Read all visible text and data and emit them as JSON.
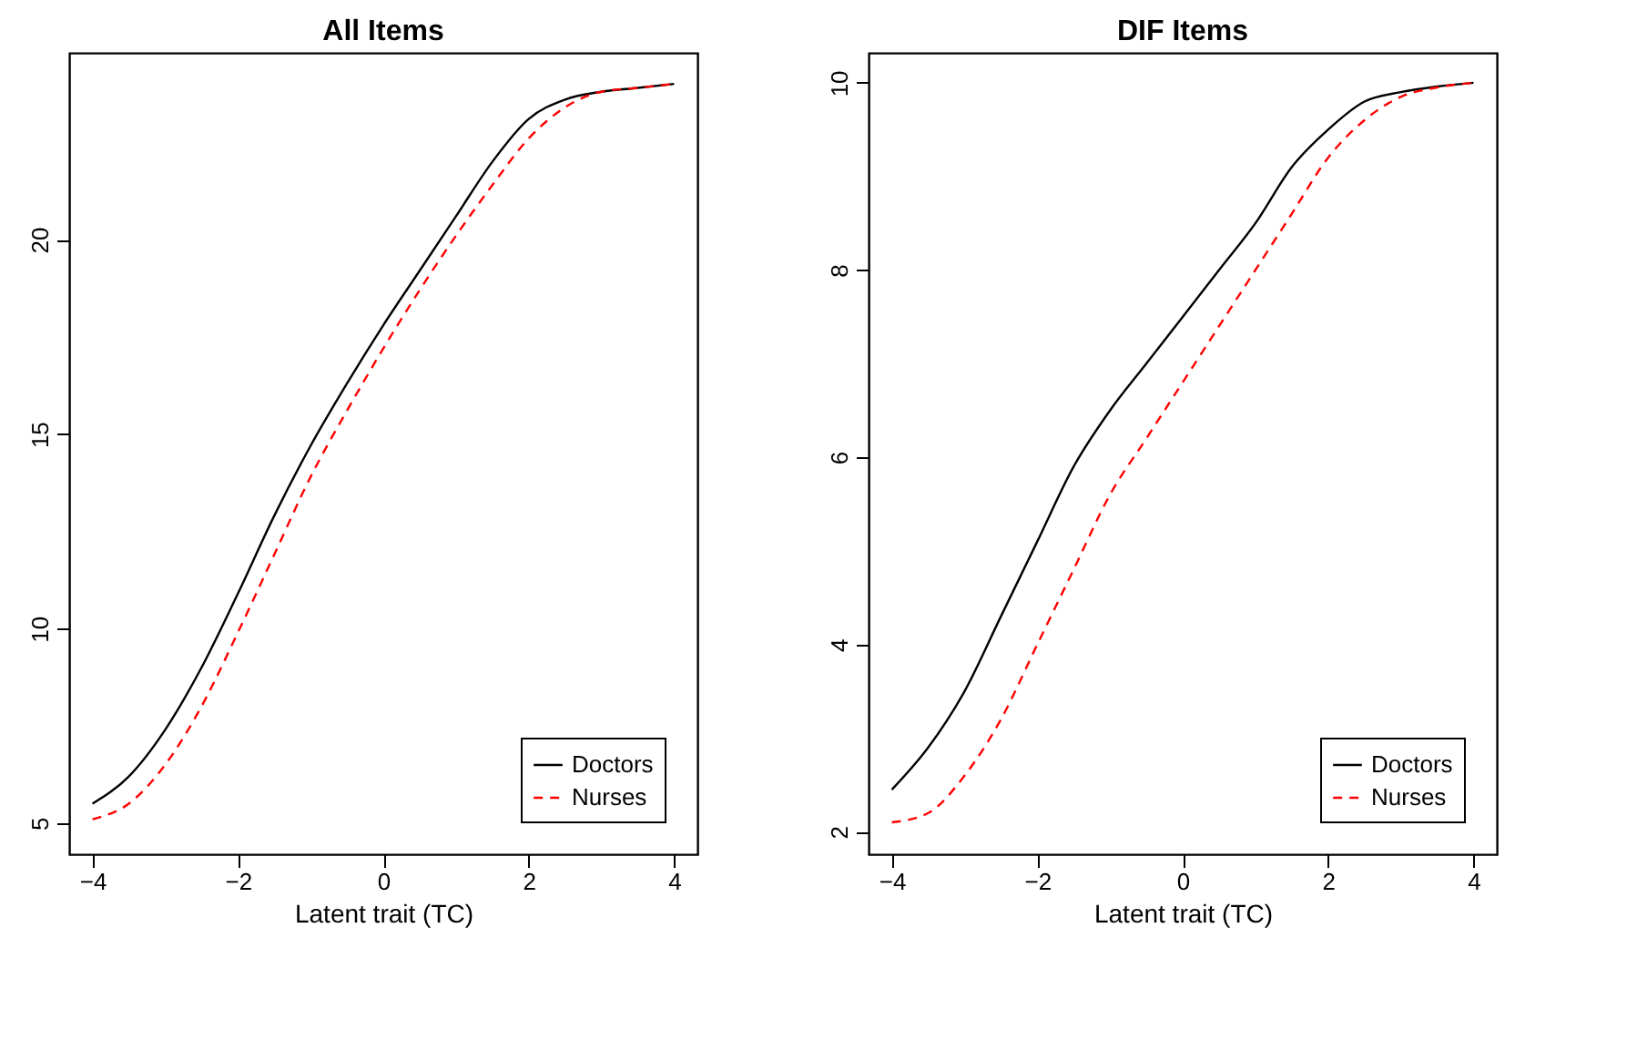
{
  "chart_data": [
    {
      "type": "line",
      "title": "All Items",
      "xlabel": "Latent trait (TC)",
      "x": [
        -4,
        -3.5,
        -3,
        -2.5,
        -2,
        -1.5,
        -1,
        -0.5,
        0,
        0.5,
        1,
        1.5,
        2,
        2.5,
        3,
        3.5,
        4
      ],
      "xlim": [
        -4.32,
        4.32
      ],
      "xticks": [
        -4,
        -2,
        0,
        2,
        4
      ],
      "ylim": [
        4.2,
        24.8
      ],
      "yticks": [
        5,
        10,
        15,
        20
      ],
      "legend": "bottom right",
      "series": [
        {
          "name": "Doctors",
          "color": "#000000",
          "line_style": "solid",
          "values": [
            5.5,
            6.2,
            7.4,
            9.0,
            10.9,
            12.9,
            14.7,
            16.3,
            17.8,
            19.2,
            20.6,
            22.0,
            23.1,
            23.6,
            23.8,
            23.9,
            24.0
          ]
        },
        {
          "name": "Nurses",
          "color": "#ff0000",
          "line_style": "dashed",
          "values": [
            5.1,
            5.5,
            6.5,
            8.0,
            9.9,
            11.9,
            13.9,
            15.6,
            17.2,
            18.7,
            20.1,
            21.4,
            22.6,
            23.4,
            23.8,
            23.9,
            24.0
          ]
        }
      ]
    },
    {
      "type": "line",
      "title": "DIF Items",
      "xlabel": "Latent trait (TC)",
      "x": [
        -4,
        -3.5,
        -3,
        -2.5,
        -2,
        -1.5,
        -1,
        -0.5,
        0,
        0.5,
        1,
        1.5,
        2,
        2.5,
        3,
        3.5,
        4
      ],
      "xlim": [
        -4.32,
        4.32
      ],
      "xticks": [
        -4,
        -2,
        0,
        2,
        4
      ],
      "ylim": [
        1.76,
        10.32
      ],
      "yticks": [
        2,
        4,
        6,
        8,
        10
      ],
      "legend": "bottom right",
      "series": [
        {
          "name": "Doctors",
          "color": "#000000",
          "line_style": "solid",
          "values": [
            2.45,
            2.9,
            3.5,
            4.3,
            5.1,
            5.9,
            6.5,
            7.0,
            7.5,
            8.0,
            8.5,
            9.1,
            9.5,
            9.8,
            9.9,
            9.96,
            10.0
          ]
        },
        {
          "name": "Nurses",
          "color": "#ff0000",
          "line_style": "dashed",
          "values": [
            2.1,
            2.2,
            2.6,
            3.2,
            4.0,
            4.8,
            5.6,
            6.2,
            6.8,
            7.4,
            8.0,
            8.6,
            9.2,
            9.6,
            9.85,
            9.95,
            10.0
          ]
        }
      ]
    }
  ]
}
